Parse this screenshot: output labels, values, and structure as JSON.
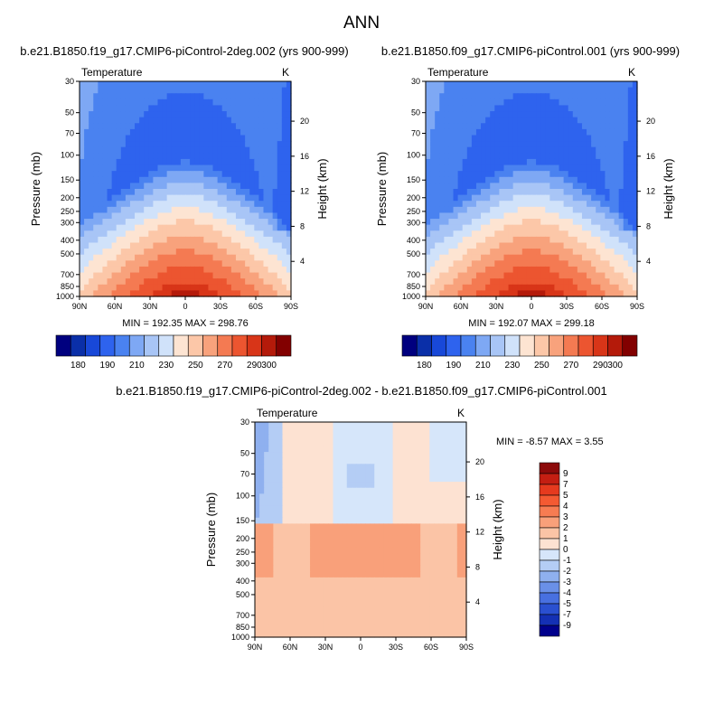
{
  "figure_title": "ANN",
  "chart_data": [
    {
      "type": "heatmap",
      "title": "b.e21.B1850.f19_g17.CMIP6-piControl-2deg.002 (yrs 900-999)",
      "left_label": "Temperature",
      "right_label": "K",
      "ylabel": "Pressure (mb)",
      "ylabel_right": "Height (km)",
      "x_ticks": [
        "90N",
        "60N",
        "30N",
        "0",
        "30S",
        "60S",
        "90S"
      ],
      "y_ticks": [
        "30",
        "50",
        "70",
        "100",
        "150",
        "200",
        "250",
        "300",
        "400",
        "500",
        "700",
        "850",
        "1000"
      ],
      "y_ticks_right": [
        "20",
        "16",
        "12",
        "8",
        "4"
      ],
      "stats": "MIN = 192.35   MAX = 298.76",
      "min": 192.35,
      "max": 298.76,
      "colorbar": {
        "orientation": "horizontal",
        "labels": [
          "180",
          "190",
          "210",
          "230",
          "250",
          "270",
          "290",
          "300"
        ],
        "colors": [
          "#00007f",
          "#0a2fa8",
          "#1848d8",
          "#2e63ee",
          "#4a82f0",
          "#7ea8f4",
          "#a8c5f6",
          "#d0e2fa",
          "#fde4d2",
          "#fcc7a8",
          "#f8a27c",
          "#f47a52",
          "#ec5530",
          "#d83518",
          "#b41a0a",
          "#820000"
        ]
      }
    },
    {
      "type": "heatmap",
      "title": "b.e21.B1850.f09_g17.CMIP6-piControl.001 (yrs 900-999)",
      "left_label": "Temperature",
      "right_label": "K",
      "ylabel": "Pressure (mb)",
      "ylabel_right": "Height (km)",
      "x_ticks": [
        "90N",
        "60N",
        "30N",
        "0",
        "30S",
        "60S",
        "90S"
      ],
      "y_ticks": [
        "30",
        "50",
        "70",
        "100",
        "150",
        "200",
        "250",
        "300",
        "400",
        "500",
        "700",
        "850",
        "1000"
      ],
      "y_ticks_right": [
        "20",
        "16",
        "12",
        "8",
        "4"
      ],
      "stats": "MIN = 192.07   MAX = 299.18",
      "min": 192.07,
      "max": 299.18,
      "colorbar": {
        "orientation": "horizontal",
        "labels": [
          "180",
          "190",
          "210",
          "230",
          "250",
          "270",
          "290",
          "300"
        ],
        "colors": [
          "#00007f",
          "#0a2fa8",
          "#1848d8",
          "#2e63ee",
          "#4a82f0",
          "#7ea8f4",
          "#a8c5f6",
          "#d0e2fa",
          "#fde4d2",
          "#fcc7a8",
          "#f8a27c",
          "#f47a52",
          "#ec5530",
          "#d83518",
          "#b41a0a",
          "#820000"
        ]
      }
    },
    {
      "type": "heatmap",
      "title": "b.e21.B1850.f19_g17.CMIP6-piControl-2deg.002 - b.e21.B1850.f09_g17.CMIP6-piControl.001",
      "left_label": "Temperature",
      "right_label": "K",
      "ylabel": "Pressure (mb)",
      "ylabel_right": "Height (km)",
      "x_ticks": [
        "90N",
        "60N",
        "30N",
        "0",
        "30S",
        "60S",
        "90S"
      ],
      "y_ticks": [
        "30",
        "50",
        "70",
        "100",
        "150",
        "200",
        "250",
        "300",
        "400",
        "500",
        "700",
        "850",
        "1000"
      ],
      "y_ticks_right": [
        "20",
        "16",
        "12",
        "8",
        "4"
      ],
      "stats": "MIN =  -8.57   MAX =   3.55",
      "min": -8.57,
      "max": 3.55,
      "colorbar": {
        "orientation": "vertical",
        "labels": [
          "9",
          "7",
          "5",
          "4",
          "3",
          "2",
          "1",
          "0",
          "-1",
          "-2",
          "-3",
          "-4",
          "-5",
          "-7",
          "-9"
        ],
        "colors": [
          "#8c0a0a",
          "#c41e12",
          "#e63a1e",
          "#f45a32",
          "#f77c52",
          "#f9a07a",
          "#fbc4a6",
          "#fde2d2",
          "#d6e6fa",
          "#b4cdf5",
          "#8fb0ef",
          "#6a90e8",
          "#4870e0",
          "#2a50d0",
          "#1430b4",
          "#00008c"
        ]
      }
    }
  ]
}
